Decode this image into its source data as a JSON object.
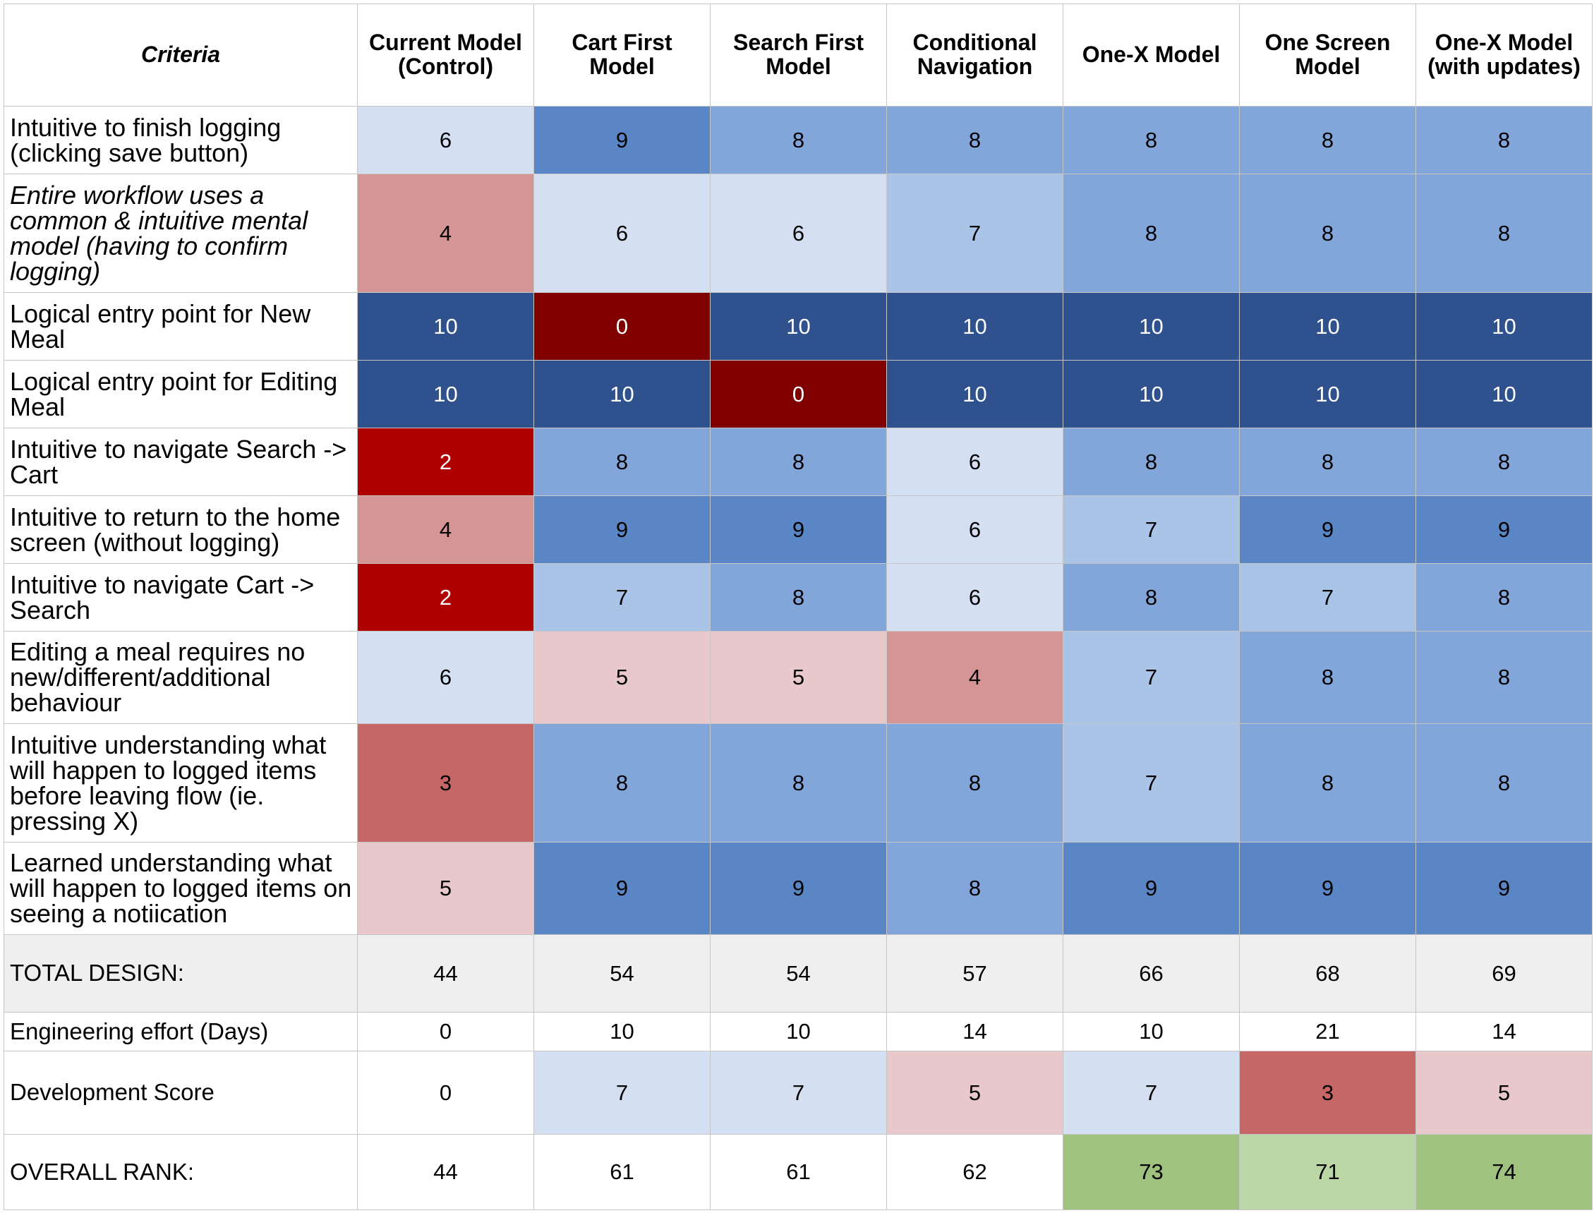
{
  "chart_data": {
    "type": "table",
    "columns": [
      "Criteria",
      "Current Model (Control)",
      "Cart First Model",
      "Search First Model",
      "Conditional Navigation",
      "One-X Model",
      "One Screen Model",
      "One-X Model (with updates)"
    ],
    "rows": [
      {
        "label": "Intuitive to finish logging (clicking save button)",
        "italic": false,
        "values": [
          6,
          9,
          8,
          8,
          8,
          8,
          8
        ],
        "fills": [
          "#d4e0f1",
          "#5b86c5",
          "#82a6d9",
          "#82a6d9",
          "#82a6d9",
          "#82a6d9",
          "#82a6d9"
        ]
      },
      {
        "label": "Entire workflow uses a common & intuitive mental model (having to confirm logging)",
        "italic": true,
        "values": [
          4,
          6,
          6,
          7,
          8,
          8,
          8
        ],
        "fills": [
          "#d69595",
          "#d4e0f1",
          "#d4e0f1",
          "#aac4e8",
          "#82a6d9",
          "#82a6d9",
          "#82a6d9"
        ]
      },
      {
        "label": "Logical entry point for New Meal",
        "italic": false,
        "values": [
          10,
          0,
          10,
          10,
          10,
          10,
          10
        ],
        "fills": [
          "#2f528e",
          "#800000",
          "#2f528e",
          "#2f528e",
          "#2f528e",
          "#2f528e",
          "#2f528e"
        ]
      },
      {
        "label": "Logical entry point for Editing Meal",
        "italic": false,
        "values": [
          10,
          10,
          0,
          10,
          10,
          10,
          10
        ],
        "fills": [
          "#2f528e",
          "#2f528e",
          "#800000",
          "#2f528e",
          "#2f528e",
          "#2f528e",
          "#2f528e"
        ]
      },
      {
        "label": "Intuitive to navigate Search -> Cart",
        "italic": false,
        "values": [
          2,
          8,
          8,
          6,
          8,
          8,
          8
        ],
        "fills": [
          "#ae0000",
          "#82a6d9",
          "#82a6d9",
          "#d4e0f1",
          "#82a6d9",
          "#82a6d9",
          "#82a6d9"
        ]
      },
      {
        "label": "Intuitive to return to the home screen (without logging)",
        "italic": false,
        "values": [
          4,
          9,
          9,
          6,
          7,
          9,
          9
        ],
        "fills": [
          "#d69595",
          "#5b86c5",
          "#5b86c5",
          "#d4e0f1",
          "#aac4e8",
          "#5b86c5",
          "#5b86c5"
        ]
      },
      {
        "label": "Intuitive to navigate Cart -> Search",
        "italic": false,
        "values": [
          2,
          7,
          8,
          6,
          8,
          7,
          8
        ],
        "fills": [
          "#ae0000",
          "#aac4e8",
          "#82a6d9",
          "#d4e0f1",
          "#82a6d9",
          "#aac4e8",
          "#82a6d9"
        ]
      },
      {
        "label": "Editing a meal requires no new/different/additional behaviour",
        "italic": false,
        "values": [
          6,
          5,
          5,
          4,
          7,
          8,
          8
        ],
        "fills": [
          "#d4e0f1",
          "#e8c8ca",
          "#e8c8ca",
          "#d69595",
          "#aac4e8",
          "#82a6d9",
          "#82a6d9"
        ]
      },
      {
        "label": "Intuitive understanding what will happen to logged items before leaving flow (ie. pressing X)",
        "italic": false,
        "values": [
          3,
          8,
          8,
          8,
          7,
          8,
          8
        ],
        "fills": [
          "#c66666",
          "#82a6d9",
          "#82a6d9",
          "#82a6d9",
          "#aac4e8",
          "#82a6d9",
          "#82a6d9"
        ]
      },
      {
        "label": "Learned understanding what will happen to logged items on seeing a notiication",
        "italic": false,
        "values": [
          5,
          9,
          9,
          8,
          9,
          9,
          9
        ],
        "fills": [
          "#e8c8ca",
          "#5b86c5",
          "#5b86c5",
          "#82a6d9",
          "#5b86c5",
          "#5b86c5",
          "#5b86c5"
        ]
      },
      {
        "label": "TOTAL DESIGN:",
        "italic": false,
        "small": true,
        "values": [
          44,
          54,
          54,
          57,
          66,
          68,
          69
        ],
        "fills": [
          "#efefef",
          "#efefef",
          "#efefef",
          "#efefef",
          "#efefef",
          "#efefef",
          "#efefef"
        ],
        "label_fill": "#efefef"
      },
      {
        "label": "Engineering effort (Days)",
        "italic": false,
        "small": true,
        "values": [
          0,
          10,
          10,
          14,
          10,
          21,
          14
        ],
        "fills": [
          "#ffffff",
          "#ffffff",
          "#ffffff",
          "#ffffff",
          "#ffffff",
          "#ffffff",
          "#ffffff"
        ]
      },
      {
        "label": "Development Score",
        "italic": false,
        "small": true,
        "values": [
          0,
          7,
          7,
          5,
          7,
          3,
          5
        ],
        "fills": [
          "#ffffff",
          "#d4e0f1",
          "#d4e0f1",
          "#e8c8ca",
          "#d4e0f1",
          "#c66666",
          "#e8c8ca"
        ]
      },
      {
        "label": "OVERALL RANK:",
        "italic": false,
        "small": true,
        "values": [
          44,
          61,
          61,
          62,
          73,
          71,
          74
        ],
        "fills": [
          "#ffffff",
          "#ffffff",
          "#ffffff",
          "#ffffff",
          "#9fc37e",
          "#bcd7a6",
          "#9fc37e"
        ]
      }
    ]
  }
}
